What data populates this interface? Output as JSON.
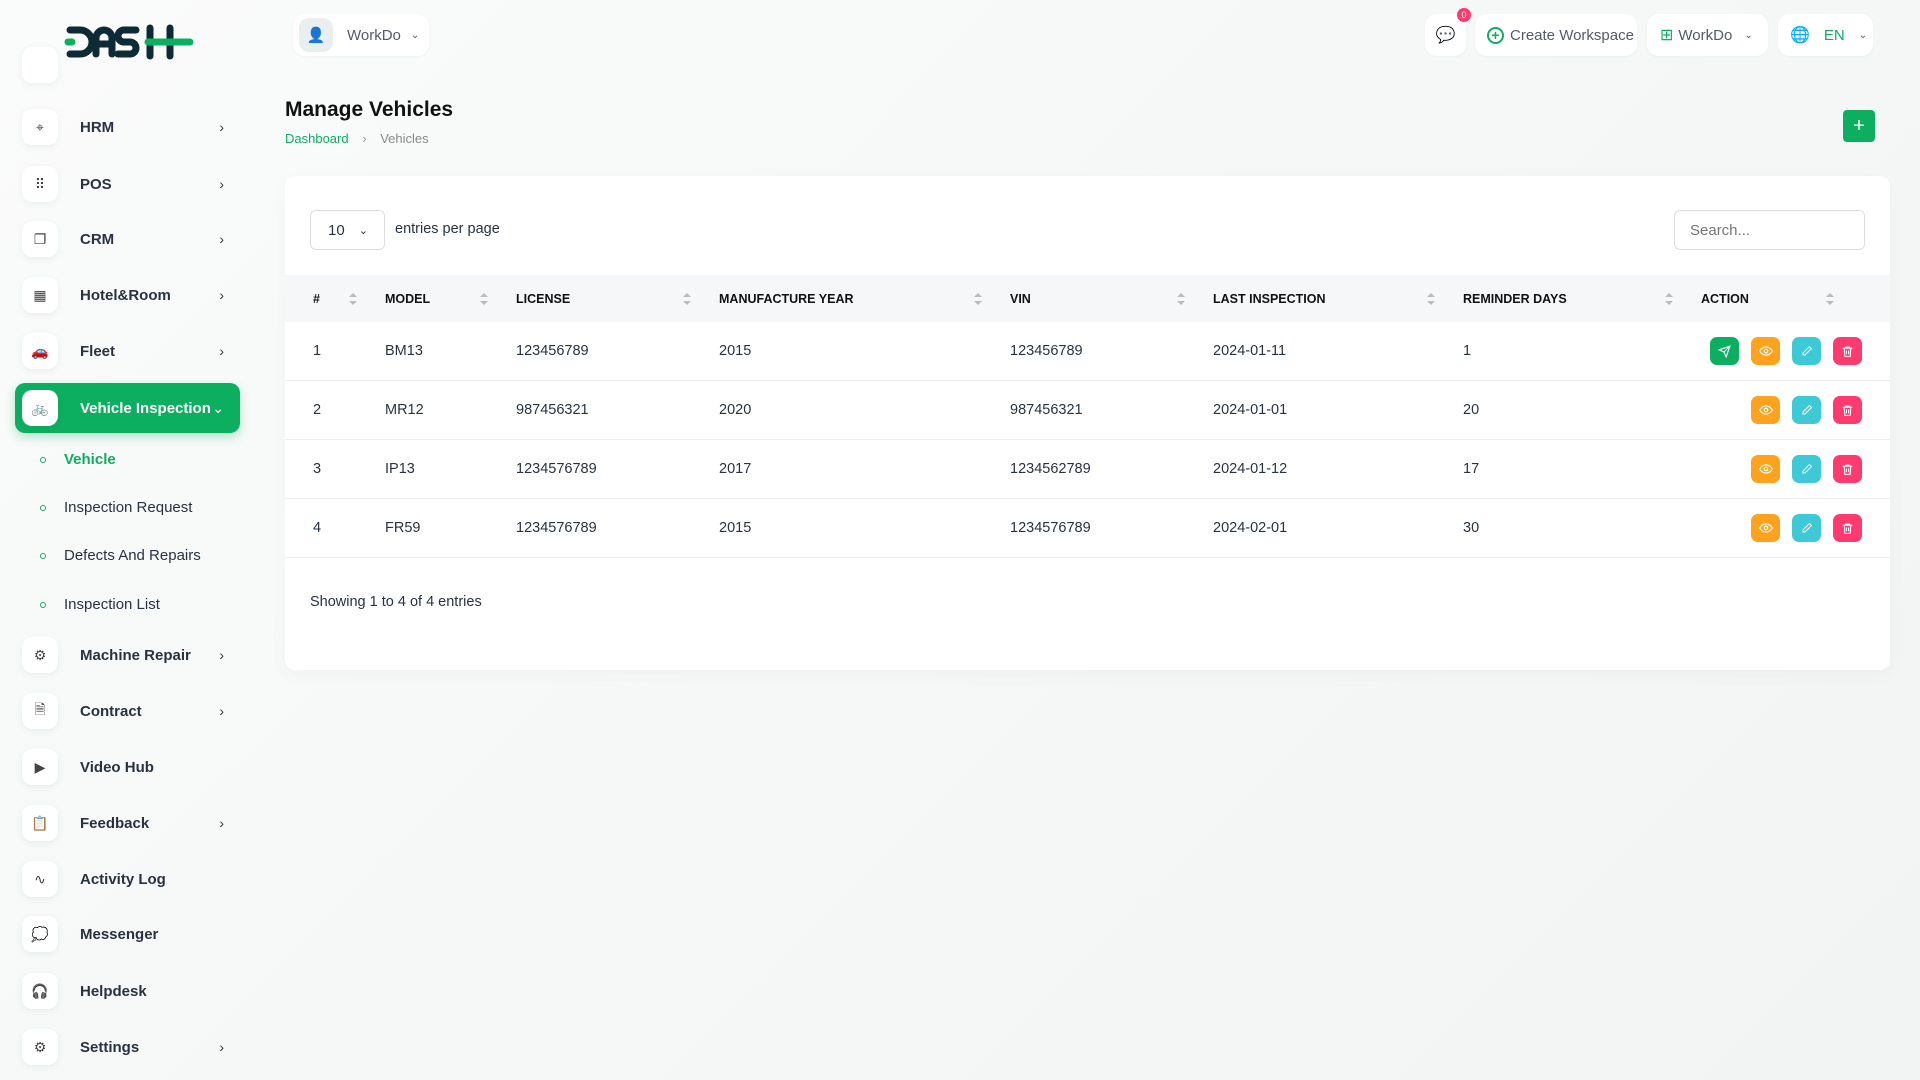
{
  "brand": {
    "logo_text": "DASH",
    "accent": "#0caf60"
  },
  "header": {
    "workspace_user": "WorkDo",
    "notifications_count": "0",
    "create_workspace": "Create Workspace",
    "workspace_select": "WorkDo",
    "language": "EN"
  },
  "sidebar": {
    "items": [
      {
        "label": "HRM",
        "icon": "hrm-icon",
        "chevron": true
      },
      {
        "label": "POS",
        "icon": "grid-icon",
        "chevron": true
      },
      {
        "label": "CRM",
        "icon": "crm-icon",
        "chevron": true
      },
      {
        "label": "Hotel&Room",
        "icon": "building-icon",
        "chevron": true
      },
      {
        "label": "Fleet",
        "icon": "car-icon",
        "chevron": true
      },
      {
        "label": "Vehicle Inspection",
        "icon": "bike-icon",
        "chevron": true,
        "active": true
      },
      {
        "label": "Machine Repair",
        "icon": "machine-icon",
        "chevron": true
      },
      {
        "label": "Contract",
        "icon": "contract-icon",
        "chevron": true
      },
      {
        "label": "Video Hub",
        "icon": "video-icon",
        "chevron": false
      },
      {
        "label": "Feedback",
        "icon": "clipboard-icon",
        "chevron": true
      },
      {
        "label": "Activity Log",
        "icon": "pulse-icon",
        "chevron": false
      },
      {
        "label": "Messenger",
        "icon": "chat-icon",
        "chevron": false
      },
      {
        "label": "Helpdesk",
        "icon": "headset-icon",
        "chevron": false
      },
      {
        "label": "Settings",
        "icon": "gear-icon",
        "chevron": true
      }
    ],
    "subitems": [
      {
        "label": "Vehicle",
        "active": true
      },
      {
        "label": "Inspection Request"
      },
      {
        "label": "Defects And Repairs"
      },
      {
        "label": "Inspection List"
      }
    ]
  },
  "page": {
    "title": "Manage Vehicles",
    "breadcrumb": [
      "Dashboard",
      "Vehicles"
    ]
  },
  "table": {
    "entries_value": "10",
    "entries_label": "entries per page",
    "search_placeholder": "Search...",
    "columns": [
      "#",
      "MODEL",
      "LICENSE",
      "MANUFACTURE YEAR",
      "VIN",
      "LAST INSPECTION",
      "REMINDER DAYS",
      "ACTION"
    ],
    "rows": [
      [
        "1",
        "BM13",
        "123456789",
        "2015",
        "123456789",
        "2024-01-11",
        "1"
      ],
      [
        "2",
        "MR12",
        "987456321",
        "2020",
        "987456321",
        "2024-01-01",
        "20"
      ],
      [
        "3",
        "IP13",
        "1234576789",
        "2017",
        "1234562789",
        "2024-01-12",
        "17"
      ],
      [
        "4",
        "FR59",
        "1234576789",
        "2015",
        "1234576789",
        "2024-02-01",
        "30"
      ]
    ],
    "row_actions": [
      [
        "send",
        "view",
        "edit",
        "delete"
      ],
      [
        "view",
        "edit",
        "delete"
      ],
      [
        "view",
        "edit",
        "delete"
      ],
      [
        "view",
        "edit",
        "delete"
      ]
    ],
    "footer": "Showing 1 to 4 of 4 entries"
  },
  "colors": {
    "send": "#0caf60",
    "view": "#ffa21d",
    "edit": "#3ec9d6",
    "delete": "#ff3a6e"
  }
}
